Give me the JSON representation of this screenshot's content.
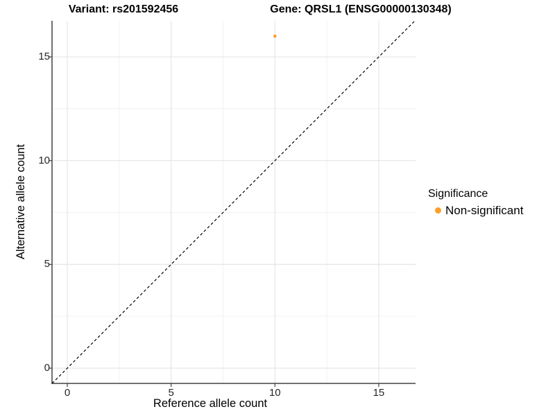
{
  "chart_data": {
    "type": "scatter",
    "titles": {
      "left": "Variant: rs201592456",
      "right": "Gene: QRSL1 (ENSG00000130348)"
    },
    "xlabel": "Reference allele count",
    "ylabel": "Alternative allele count",
    "x_ticks": [
      0,
      5,
      10,
      15
    ],
    "y_ticks": [
      0,
      5,
      10,
      15
    ],
    "xlim": [
      -0.75,
      16.8
    ],
    "ylim": [
      -0.75,
      16.75
    ],
    "grid": {
      "major": true,
      "minor": true
    },
    "reference_line": {
      "kind": "identity y=x",
      "style": "dashed",
      "color": "#000000"
    },
    "series": [
      {
        "name": "Non-significant",
        "color": "#F9A02B",
        "points": [
          {
            "x": 10,
            "y": 16
          }
        ]
      }
    ],
    "legend": {
      "title": "Significance",
      "position": "right",
      "items": [
        {
          "label": "Non-significant",
          "color": "#F9A02B"
        }
      ]
    }
  },
  "colors": {
    "background": "#ffffff",
    "grid_major": "#e6e6e6",
    "grid_minor": "#f1f1f1",
    "axis_line": "#404040",
    "tick_mark": "#404040",
    "tick_text": "#262626"
  }
}
